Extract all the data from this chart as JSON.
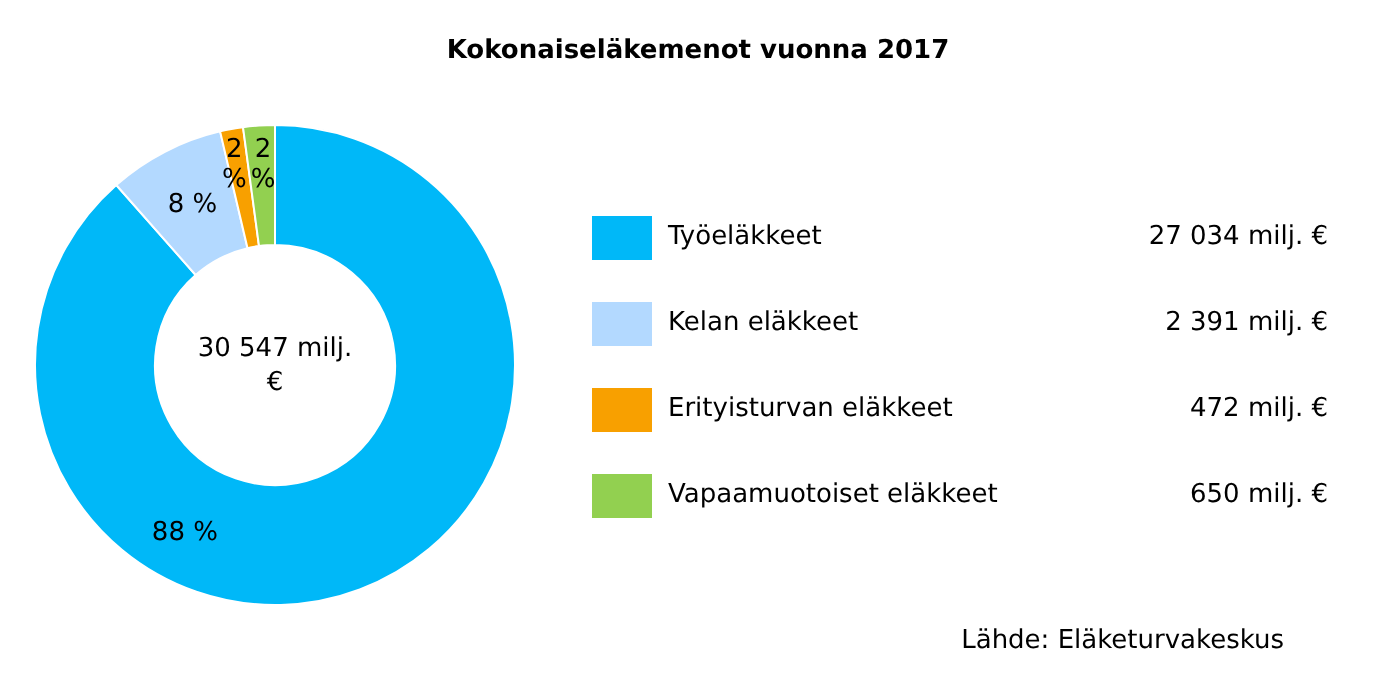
{
  "chart_data": {
    "type": "donut",
    "title": "Kokonaiseläkemenot vuonna 2017",
    "categories": [
      "Työeläkkeet",
      "Kelan eläkkeet",
      "Erityisturvan eläkkeet",
      "Vapaamuotoiset eläkkeet"
    ],
    "values": [
      27034,
      2391,
      472,
      650
    ],
    "colors": [
      "#00b8f8",
      "#b3d9ff",
      "#f8a000",
      "#92d050"
    ],
    "value_labels": [
      "27 034 milj. €",
      "2 391 milj. €",
      "472 milj. €",
      "650 milj. €"
    ],
    "annotations": [
      {
        "text": "88 %",
        "x": "Työeläkkeet"
      },
      {
        "text": "8 %",
        "x": "Kelan eläkkeet"
      },
      {
        "text": "2 %",
        "x": "Erityisturvan eläkkeet"
      },
      {
        "text": "2 %",
        "x": "Vapaamuotoiset eläkkeet"
      },
      "30 547 milj. €",
      "Lähde: Eläketurvakeskus"
    ],
    "legend": "right"
  }
}
